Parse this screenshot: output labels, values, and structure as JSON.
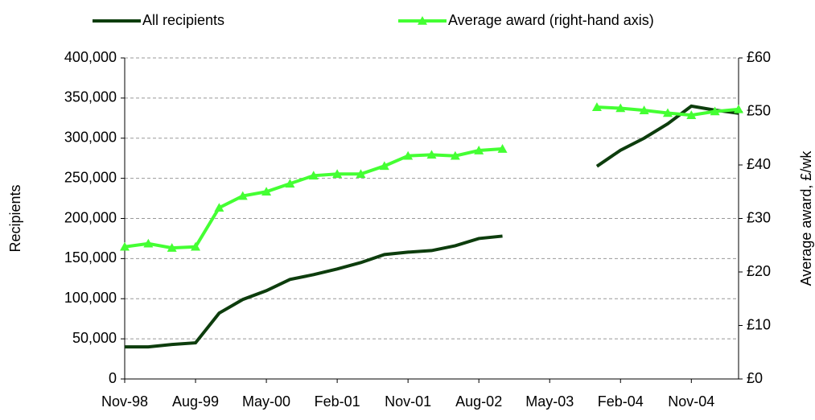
{
  "chart_data": {
    "type": "line",
    "categories": [
      "Nov-98",
      null,
      null,
      "Aug-99",
      null,
      null,
      "May-00",
      null,
      null,
      "Feb-01",
      null,
      null,
      "Nov-01",
      null,
      null,
      "Aug-02",
      null,
      null,
      "May-03",
      null,
      null,
      "Feb-04",
      null,
      null,
      "Nov-04",
      null,
      null
    ],
    "series": [
      {
        "name": "All recipients",
        "color": "#0d3d0d",
        "values": [
          40000,
          40000,
          43000,
          45000,
          82000,
          99000,
          110000,
          124000,
          130000,
          137000,
          145000,
          155000,
          158000,
          160000,
          166000,
          175000,
          178000,
          null,
          null,
          null,
          265000,
          285000,
          300000,
          318000,
          340000,
          335000,
          331000
        ]
      },
      {
        "name": "Average award (right-hand axis)",
        "color": "#44ff33",
        "axis": "y2",
        "marker": "triangle",
        "values": [
          24.7,
          25.3,
          24.5,
          24.7,
          32,
          34.2,
          35,
          36.5,
          38,
          38.3,
          38.3,
          39.8,
          41.7,
          41.9,
          41.7,
          42.7,
          43,
          null,
          null,
          null,
          50.8,
          50.6,
          50.2,
          49.7,
          49.3,
          50,
          50.4
        ]
      }
    ],
    "ylabel": "Recipients",
    "y2label": "Average award, £/wk",
    "ylim": [
      0,
      400000
    ],
    "yticks": [
      0,
      {
        "value": 50000,
        "label": "50,000"
      },
      {
        "value": 100000,
        "label": "100,000"
      },
      {
        "value": 150000,
        "label": "150,000"
      },
      {
        "value": 200000,
        "label": "200,000"
      },
      {
        "value": 250000,
        "label": "250,000"
      },
      {
        "value": 300000,
        "label": "300,000"
      },
      {
        "value": 350000,
        "label": "350,000"
      },
      {
        "value": 400000,
        "label": "400,000"
      }
    ],
    "y2lim": [
      0,
      60
    ],
    "y2ticks": [
      {
        "value": 0,
        "label": "£0"
      },
      {
        "value": 10,
        "label": "£10"
      },
      {
        "value": 20,
        "label": "£20"
      },
      {
        "value": 30,
        "label": "£30"
      },
      {
        "value": 40,
        "label": "£40"
      },
      {
        "value": 50,
        "label": "£50"
      },
      {
        "value": 60,
        "label": "£60"
      }
    ],
    "grid": true,
    "legend": "top"
  }
}
